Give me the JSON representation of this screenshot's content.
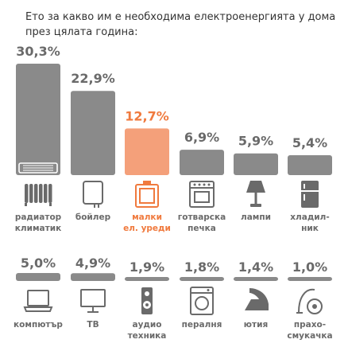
{
  "title_lines": [
    "Ето за какво им е необходима електроенергията у дома",
    "през цялата година:"
  ],
  "colors": {
    "bar": "#8a8a8a",
    "highlight": "#f4a07a",
    "label": "#6a6a6a",
    "highlight_label": "#f07a3e",
    "icon": "#6a6a6a"
  },
  "chart_data": {
    "type": "bar",
    "title": "",
    "xlabel": "",
    "ylabel": "",
    "ylim": [
      0,
      30.3
    ],
    "highlight": "малки ел. уреди",
    "rows": [
      {
        "items": [
          {
            "category": "радиатор климатик",
            "label_lines": [
              "радиатор",
              "климатик"
            ],
            "value": 30.3,
            "value_label": "30,3%",
            "icon": "radiator-icon"
          },
          {
            "category": "бойлер",
            "label_lines": [
              "бойлер"
            ],
            "value": 22.9,
            "value_label": "22,9%",
            "icon": "boiler-icon"
          },
          {
            "category": "малки ел. уреди",
            "label_lines": [
              "малки",
              "ел. уреди"
            ],
            "value": 12.7,
            "value_label": "12,7%",
            "icon": "small-appliances-icon"
          },
          {
            "category": "готварска печка",
            "label_lines": [
              "готварска",
              "печка"
            ],
            "value": 6.9,
            "value_label": "6,9%",
            "icon": "stove-icon"
          },
          {
            "category": "лампи",
            "label_lines": [
              "лампи"
            ],
            "value": 5.9,
            "value_label": "5,9%",
            "icon": "lamp-icon"
          },
          {
            "category": "хладилник",
            "label_lines": [
              "хладил-",
              "ник"
            ],
            "value": 5.4,
            "value_label": "5,4%",
            "icon": "fridge-icon"
          }
        ]
      },
      {
        "items": [
          {
            "category": "компютър",
            "label_lines": [
              "компютър"
            ],
            "value": 5.0,
            "value_label": "5,0%",
            "icon": "laptop-icon"
          },
          {
            "category": "ТВ",
            "label_lines": [
              "ТВ"
            ],
            "value": 4.9,
            "value_label": "4,9%",
            "icon": "tv-icon"
          },
          {
            "category": "аудио техника",
            "label_lines": [
              "аудио",
              "техника"
            ],
            "value": 1.9,
            "value_label": "1,9%",
            "icon": "speaker-icon"
          },
          {
            "category": "пералня",
            "label_lines": [
              "пералня"
            ],
            "value": 1.8,
            "value_label": "1,8%",
            "icon": "washing-machine-icon"
          },
          {
            "category": "ютия",
            "label_lines": [
              "ютия"
            ],
            "value": 1.4,
            "value_label": "1,4%",
            "icon": "iron-icon"
          },
          {
            "category": "прахосмукачка",
            "label_lines": [
              "прахо-",
              "смукачка"
            ],
            "value": 1.0,
            "value_label": "1,0%",
            "icon": "vacuum-icon"
          }
        ]
      }
    ]
  }
}
